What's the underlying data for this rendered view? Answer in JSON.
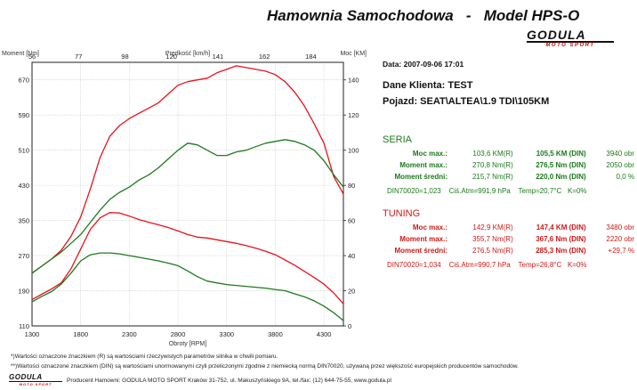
{
  "header": {
    "title": "Hamownia Samochodowa   -   Model HPS-O",
    "logo_main": "GODULA",
    "logo_sub": "MOTO SPORT"
  },
  "info": {
    "date": "Data: 2007-09-06  17:01",
    "client": "Dane Klienta: TEST",
    "vehicle": "Pojazd: SEAT\\ALTEA\\1.9 TDI\\105KM"
  },
  "seria": {
    "title": "SERIA",
    "rows": [
      {
        "label": "Moc max.:",
        "v1": "103,6 KM(R)",
        "v2": "105,5 KM (DIN)",
        "v3": "3940 obr"
      },
      {
        "label": "Moment max.:",
        "v1": "270,8 Nm(R)",
        "v2": "276,5 Nm (DIN)",
        "v3": "2050 obr"
      },
      {
        "label": "Moment średni:",
        "v1": "215,7 Nm(R)",
        "v2": "220,0 Nm (DIN)",
        "v3": "0,0 %"
      }
    ],
    "din": "DIN70020=1,023    Ciś.Atm=991,9 hPa    Temp=20,7°C   K=0%"
  },
  "tuning": {
    "title": "TUNING",
    "rows": [
      {
        "label": "Moc max.:",
        "v1": "142,9 KM(R)",
        "v2": "147,4 KM (DIN)",
        "v3": "3480 obr"
      },
      {
        "label": "Moment max.:",
        "v1": "355,7 Nm(R)",
        "v2": "367,6 Nm (DIN)",
        "v3": "2220 obr"
      },
      {
        "label": "Moment średni:",
        "v1": "276,5 Nm(R)",
        "v2": "285,3 Nm (DIN)",
        "v3": "+29,7 %"
      }
    ],
    "din": "DIN70020=1,034    Ciś.Atm=990,7 hPa    Temp=26,8°C   K=0%"
  },
  "footer": {
    "fn1": "*)Wartości oznaczone znaczkiem (R) są wartościami rzeczywistych parametrów silnika w chwili pomiaru.",
    "fn2": "**)Wartości oznaczone znaczkiem (DIN) są wartościami unormowanymi czyli przeliczonymi zgodnie z niemiecką normą DIN70020, używaną przez większość europejskich producentów samochodów.",
    "producer": "Producent Hamowni: GODULA MOTO SPORT Kraków 31-752, ul. Makuszyńskiego 9A, tel./fax: (12) 644-75-55, www.godula.pl"
  },
  "chart_data": {
    "type": "line",
    "xlabel": "Obroty [RPM]",
    "x_ticks": [
      1300,
      1800,
      2300,
      2800,
      3300,
      3800,
      4300
    ],
    "xlim": [
      1300,
      4500
    ],
    "top_axis_label": "Prędkość [km/h]",
    "top_ticks": [
      "56",
      "77",
      "98",
      "120",
      "141",
      "162",
      "184"
    ],
    "ylabel_left": "Moment [Nm]",
    "y_left_ticks": [
      110,
      190,
      270,
      350,
      430,
      510,
      590,
      670
    ],
    "y_left_lim": [
      110,
      710
    ],
    "ylabel_right": "Moc [KM]",
    "y_right_ticks": [
      0,
      20,
      40,
      60,
      80,
      100,
      120,
      140
    ],
    "y_right_lim": [
      0,
      150
    ],
    "grid": true,
    "series": [
      {
        "kind": "power",
        "tuned": true,
        "color": "#e8121b",
        "x": [
          1300,
          1400,
          1500,
          1600,
          1700,
          1800,
          1900,
          2000,
          2100,
          2200,
          2300,
          2400,
          2500,
          2600,
          2700,
          2800,
          2900,
          3000,
          3100,
          3200,
          3300,
          3400,
          3500,
          3600,
          3700,
          3800,
          3900,
          4000,
          4100,
          4200,
          4300,
          4400,
          4500
        ],
        "y": [
          30,
          34,
          38,
          43,
          51,
          62,
          78,
          96,
          108,
          114,
          118,
          121,
          124,
          127,
          132,
          137,
          139,
          140,
          141,
          144,
          146,
          148,
          147,
          146,
          145,
          143,
          139,
          133,
          125,
          115,
          104,
          85,
          75
        ]
      },
      {
        "kind": "power",
        "tuned": false,
        "color": "#1d7a1d",
        "x": [
          1300,
          1400,
          1500,
          1600,
          1700,
          1800,
          1900,
          2000,
          2100,
          2200,
          2300,
          2400,
          2500,
          2600,
          2700,
          2800,
          2900,
          3000,
          3100,
          3200,
          3300,
          3400,
          3500,
          3600,
          3700,
          3800,
          3900,
          4000,
          4100,
          4200,
          4300,
          4400,
          4500
        ],
        "y": [
          30,
          34,
          38,
          42,
          47,
          52,
          59,
          66,
          72,
          76,
          79,
          83,
          86,
          90,
          95,
          100,
          104,
          103,
          100,
          97,
          97,
          99,
          100,
          102,
          104,
          105,
          106,
          105,
          103,
          100,
          94,
          86,
          79
        ]
      },
      {
        "kind": "torque",
        "tuned": true,
        "color": "#e8121b",
        "x": [
          1300,
          1400,
          1500,
          1600,
          1700,
          1800,
          1900,
          2000,
          2100,
          2200,
          2300,
          2400,
          2500,
          2600,
          2700,
          2800,
          2900,
          3000,
          3100,
          3200,
          3300,
          3400,
          3500,
          3600,
          3700,
          3800,
          3900,
          4000,
          4100,
          4200,
          4300,
          4400,
          4500
        ],
        "y": [
          170,
          182,
          194,
          208,
          240,
          285,
          330,
          356,
          368,
          367,
          360,
          352,
          346,
          340,
          334,
          326,
          318,
          312,
          310,
          306,
          302,
          298,
          293,
          287,
          280,
          272,
          260,
          248,
          234,
          220,
          205,
          185,
          160
        ]
      },
      {
        "kind": "torque",
        "tuned": false,
        "color": "#1d7a1d",
        "x": [
          1300,
          1400,
          1500,
          1600,
          1700,
          1800,
          1900,
          2000,
          2100,
          2200,
          2300,
          2400,
          2500,
          2600,
          2700,
          2800,
          2900,
          3000,
          3100,
          3200,
          3300,
          3400,
          3500,
          3600,
          3700,
          3800,
          3900,
          4000,
          4100,
          4200,
          4300,
          4400,
          4500
        ],
        "y": [
          165,
          177,
          188,
          205,
          230,
          258,
          272,
          276,
          276,
          274,
          270,
          266,
          262,
          258,
          253,
          247,
          235,
          222,
          212,
          208,
          204,
          202,
          200,
          198,
          196,
          193,
          190,
          183,
          176,
          167,
          155,
          140,
          122
        ]
      }
    ]
  }
}
